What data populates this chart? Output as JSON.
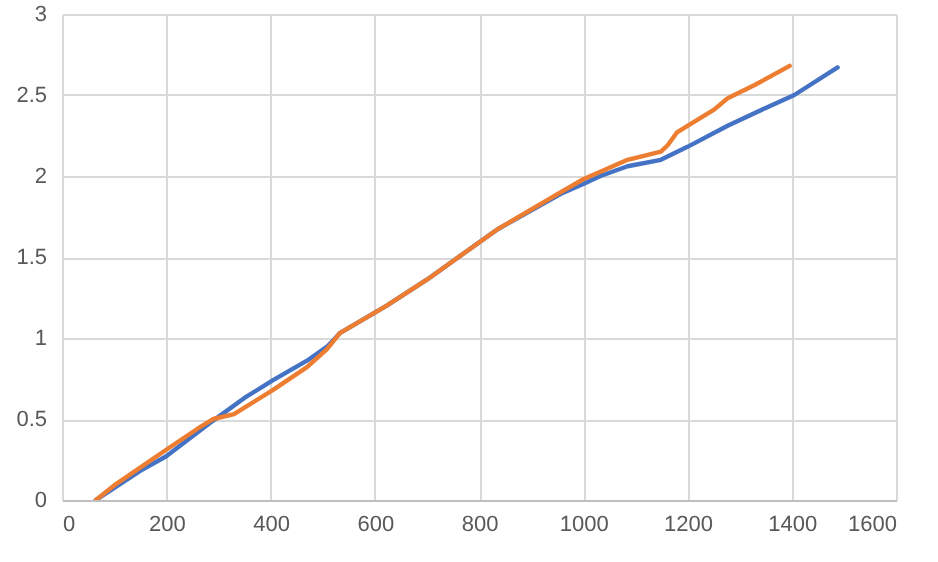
{
  "chart_data": {
    "type": "line",
    "xlim": [
      0,
      1600
    ],
    "xticks": [
      0,
      200,
      400,
      600,
      800,
      1000,
      1200,
      1400,
      1600
    ],
    "ylim": [
      0,
      3
    ],
    "yticks": [
      0,
      0.5,
      1,
      1.5,
      2,
      2.5,
      3
    ],
    "grid": true,
    "marker": "none",
    "line_style": "solid",
    "series": [
      {
        "color": "#4472c4",
        "x": [
          65,
          150,
          200,
          290,
          350,
          405,
          470,
          510,
          533,
          623,
          700,
          835,
          957,
          1000,
          1033,
          1085,
          1149,
          1200,
          1277,
          1350,
          1405,
          1488
        ],
        "values": [
          0,
          0.18,
          0.27,
          0.49,
          0.63,
          0.74,
          0.86,
          0.95,
          1.03,
          1.2,
          1.36,
          1.67,
          1.89,
          1.95,
          2.0,
          2.06,
          2.1,
          2.18,
          2.31,
          2.42,
          2.5,
          2.67
        ]
      },
      {
        "color": "#ed7d31",
        "x": [
          65,
          100,
          200,
          260,
          290,
          330,
          405,
          470,
          508,
          533,
          623,
          700,
          835,
          957,
          1000,
          1085,
          1149,
          1162,
          1180,
          1200,
          1251,
          1277,
          1328,
          1396
        ],
        "values": [
          0,
          0.09,
          0.31,
          0.44,
          0.5,
          0.53,
          0.68,
          0.82,
          0.93,
          1.03,
          1.2,
          1.36,
          1.67,
          1.9,
          1.98,
          2.1,
          2.15,
          2.19,
          2.27,
          2.31,
          2.41,
          2.48,
          2.56,
          2.68
        ]
      }
    ]
  }
}
